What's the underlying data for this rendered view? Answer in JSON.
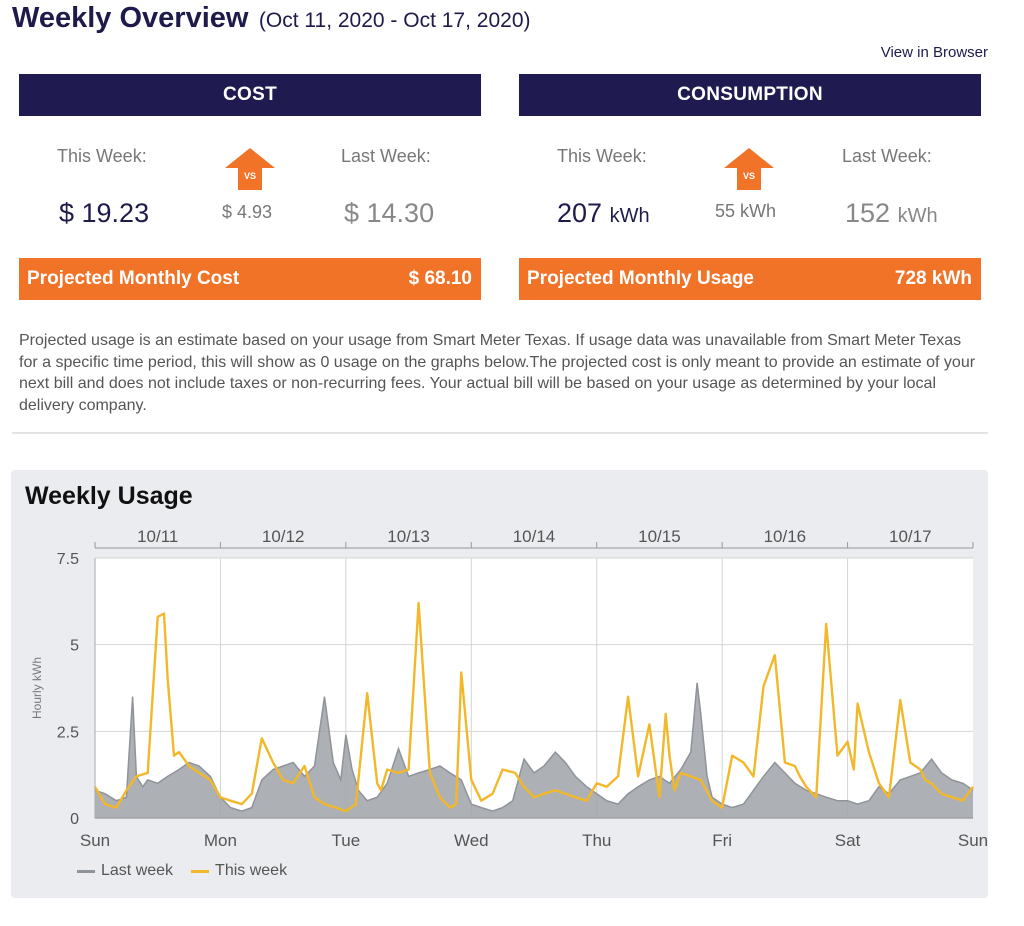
{
  "header": {
    "title": "Weekly Overview",
    "date_range": "(Oct 11, 2020 - Oct 17, 2020)",
    "view_in_browser": "View in Browser"
  },
  "cost": {
    "heading": "COST",
    "this_week_label": "This Week:",
    "last_week_label": "Last Week:",
    "this_week_value": "$ 19.23",
    "last_week_value": "$ 14.30",
    "difference": "$ 4.93",
    "vs_label": "VS",
    "projected_label": "Projected Monthly Cost",
    "projected_value": "$ 68.10"
  },
  "consumption": {
    "heading": "CONSUMPTION",
    "this_week_label": "This Week:",
    "last_week_label": "Last Week:",
    "this_week_value": "207",
    "last_week_value": "152",
    "unit": "kWh",
    "difference": "55 kWh",
    "vs_label": "VS",
    "projected_label": "Projected Monthly Usage",
    "projected_value": "728 kWh"
  },
  "disclaimer": "Projected usage is an estimate based on your usage from Smart Meter Texas. If usage data was unavailable from Smart Meter Texas for a specific time period, this will show as 0 usage on the graphs below.The projected cost is only meant to provide an estimate of your next bill and does not include taxes or non-recurring fees. Your actual bill will be based on your usage as determined by your local delivery company.",
  "colors": {
    "navy": "#1f1a4f",
    "orange": "#f07328",
    "last_week": "#8f939a",
    "this_week": "#f2b82a"
  },
  "chart_data": {
    "type": "area",
    "title": "Weekly Usage",
    "ylabel": "Hourly kWh",
    "ylim": [
      0,
      7.5
    ],
    "yticks": [
      0,
      2.5,
      5,
      7.5
    ],
    "ytick_labels": [
      "0",
      "2.5",
      "5",
      "7.5"
    ],
    "xlim": [
      0,
      7
    ],
    "date_labels": [
      "10/11",
      "10/12",
      "10/13",
      "10/14",
      "10/15",
      "10/16",
      "10/17"
    ],
    "day_labels": [
      "Sun",
      "Mon",
      "Tue",
      "Wed",
      "Thu",
      "Fri",
      "Sat",
      "Sun"
    ],
    "legend": [
      "Last week",
      "This week"
    ],
    "series": [
      {
        "name": "Last week",
        "style": "filled-area",
        "x": [
          0,
          0.08,
          0.17,
          0.25,
          0.3,
          0.33,
          0.38,
          0.42,
          0.5,
          0.58,
          0.67,
          0.75,
          0.83,
          0.92,
          1.0,
          1.08,
          1.17,
          1.25,
          1.33,
          1.42,
          1.5,
          1.58,
          1.67,
          1.75,
          1.83,
          1.9,
          1.96,
          2.0,
          2.05,
          2.1,
          2.17,
          2.25,
          2.33,
          2.42,
          2.5,
          2.58,
          2.67,
          2.75,
          2.83,
          2.92,
          3.0,
          3.08,
          3.17,
          3.25,
          3.33,
          3.42,
          3.5,
          3.58,
          3.67,
          3.75,
          3.83,
          3.92,
          4.0,
          4.08,
          4.17,
          4.25,
          4.33,
          4.42,
          4.5,
          4.58,
          4.67,
          4.75,
          4.8,
          4.83,
          4.88,
          4.92,
          5.0,
          5.08,
          5.17,
          5.25,
          5.33,
          5.42,
          5.5,
          5.58,
          5.67,
          5.75,
          5.83,
          5.92,
          6.0,
          6.08,
          6.17,
          6.25,
          6.33,
          6.42,
          6.5,
          6.58,
          6.67,
          6.75,
          6.83,
          6.92,
          7.0
        ],
        "values": [
          0.8,
          0.7,
          0.5,
          0.6,
          3.5,
          1.2,
          0.9,
          1.1,
          1.0,
          1.2,
          1.4,
          1.6,
          1.5,
          1.2,
          0.6,
          0.3,
          0.2,
          0.3,
          1.1,
          1.4,
          1.5,
          1.6,
          1.2,
          1.5,
          3.5,
          1.6,
          1.1,
          2.4,
          1.4,
          0.8,
          0.5,
          0.6,
          1.0,
          2.0,
          1.2,
          1.3,
          1.4,
          1.5,
          1.3,
          1.1,
          0.4,
          0.3,
          0.2,
          0.3,
          0.5,
          1.7,
          1.3,
          1.5,
          1.9,
          1.6,
          1.2,
          0.9,
          0.7,
          0.5,
          0.4,
          0.7,
          0.9,
          1.1,
          1.2,
          1.0,
          1.4,
          1.9,
          3.9,
          3.0,
          1.2,
          0.6,
          0.4,
          0.3,
          0.4,
          0.8,
          1.2,
          1.6,
          1.3,
          1.0,
          0.8,
          0.7,
          0.6,
          0.5,
          0.5,
          0.4,
          0.5,
          0.9,
          0.7,
          1.1,
          1.2,
          1.3,
          1.7,
          1.3,
          1.1,
          1.0,
          0.8
        ]
      },
      {
        "name": "This week",
        "style": "line",
        "x": [
          0,
          0.08,
          0.17,
          0.25,
          0.33,
          0.42,
          0.5,
          0.55,
          0.58,
          0.63,
          0.67,
          0.75,
          0.83,
          0.92,
          1.0,
          1.08,
          1.17,
          1.25,
          1.33,
          1.42,
          1.5,
          1.58,
          1.67,
          1.75,
          1.83,
          1.92,
          2.0,
          2.08,
          2.17,
          2.25,
          2.28,
          2.33,
          2.42,
          2.5,
          2.58,
          2.67,
          2.75,
          2.83,
          2.88,
          2.92,
          3.0,
          3.08,
          3.17,
          3.25,
          3.35,
          3.42,
          3.5,
          3.58,
          3.67,
          3.75,
          3.83,
          3.92,
          4.0,
          4.08,
          4.17,
          4.25,
          4.33,
          4.42,
          4.5,
          4.55,
          4.58,
          4.62,
          4.67,
          4.75,
          4.83,
          4.92,
          5.0,
          5.08,
          5.17,
          5.25,
          5.33,
          5.42,
          5.5,
          5.58,
          5.62,
          5.67,
          5.75,
          5.83,
          5.92,
          6.0,
          6.05,
          6.08,
          6.17,
          6.25,
          6.33,
          6.42,
          6.5,
          6.58,
          6.62,
          6.67,
          6.75,
          6.83,
          6.92,
          7.0
        ],
        "values": [
          0.9,
          0.4,
          0.3,
          0.8,
          1.2,
          1.3,
          5.8,
          5.9,
          4.0,
          1.8,
          1.9,
          1.5,
          1.3,
          1.1,
          0.6,
          0.5,
          0.4,
          0.7,
          2.3,
          1.6,
          1.1,
          1.0,
          1.5,
          0.6,
          0.4,
          0.3,
          0.2,
          0.4,
          3.6,
          1.0,
          0.8,
          1.4,
          1.3,
          1.4,
          6.2,
          1.3,
          0.6,
          0.3,
          0.4,
          4.2,
          1.1,
          0.5,
          0.7,
          1.4,
          1.3,
          0.9,
          0.6,
          0.7,
          0.8,
          0.7,
          0.6,
          0.5,
          1.0,
          0.9,
          1.2,
          3.5,
          1.2,
          2.7,
          0.6,
          3.0,
          1.8,
          0.8,
          1.3,
          1.2,
          1.1,
          0.5,
          0.3,
          1.8,
          1.6,
          1.2,
          3.8,
          4.7,
          1.6,
          1.5,
          1.2,
          0.9,
          0.6,
          5.6,
          1.8,
          2.2,
          1.4,
          3.3,
          1.9,
          1.0,
          0.6,
          3.4,
          1.6,
          1.4,
          1.1,
          1.0,
          0.7,
          0.6,
          0.5,
          0.9
        ]
      }
    ]
  }
}
